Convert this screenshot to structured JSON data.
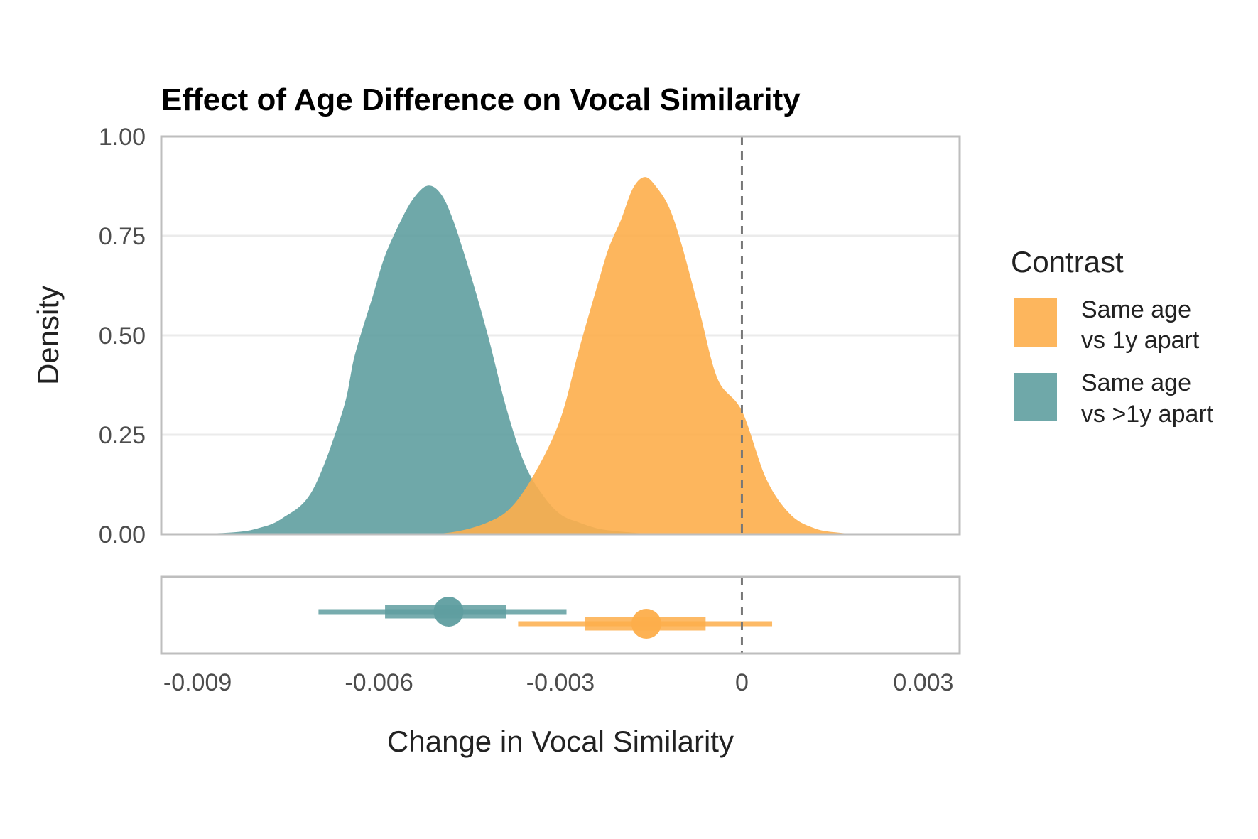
{
  "chart_data": {
    "type": "area",
    "title": "Effect of Age Difference on Vocal Similarity",
    "xlabel": "Change in Vocal Similarity",
    "ylabel": "Density",
    "xlim": [
      -0.0096,
      0.0036
    ],
    "ylim": [
      0,
      1.0
    ],
    "x_ticks": [
      "-0.009",
      "-0.006",
      "-0.003",
      "0",
      "0.003"
    ],
    "x_tick_values": [
      -0.009,
      -0.006,
      -0.003,
      0,
      0.003
    ],
    "y_ticks": [
      "0.00",
      "0.25",
      "0.50",
      "0.75",
      "1.00"
    ],
    "y_tick_values": [
      0,
      0.25,
      0.5,
      0.75,
      1.0
    ],
    "reference_line_x": 0,
    "grid": true,
    "legend": {
      "title": "Contrast",
      "position": "right",
      "entries": [
        {
          "line1": "Same age",
          "line2": "vs 1y apart",
          "color": "#fdae4b"
        },
        {
          "line1": "Same age",
          "line2": "vs >1y apart",
          "color": "#5f9ea0"
        }
      ]
    },
    "series": [
      {
        "name": "Same age vs >1y apart",
        "color": "#5f9ea0",
        "x": [
          -0.0092,
          -0.0084,
          -0.008,
          -0.0076,
          -0.0071,
          -0.0066,
          -0.0064,
          -0.0061,
          -0.0059,
          -0.0056,
          -0.0054,
          -0.0052,
          -0.005,
          -0.0048,
          -0.0045,
          -0.0042,
          -0.0039,
          -0.0036,
          -0.0033,
          -0.003,
          -0.0027,
          -0.0024,
          -0.0021,
          -0.0018,
          -0.0015
        ],
        "y": [
          0.0,
          0.005,
          0.015,
          0.04,
          0.11,
          0.31,
          0.45,
          0.6,
          0.7,
          0.8,
          0.85,
          0.876,
          0.86,
          0.8,
          0.66,
          0.5,
          0.32,
          0.18,
          0.1,
          0.05,
          0.03,
          0.015,
          0.008,
          0.004,
          0.0
        ]
      },
      {
        "name": "Same age vs 1y apart",
        "color": "#fdae4b",
        "x": [
          -0.0055,
          -0.0048,
          -0.0042,
          -0.0038,
          -0.0034,
          -0.003,
          -0.0027,
          -0.0024,
          -0.0022,
          -0.002,
          -0.0018,
          -0.0016,
          -0.0014,
          -0.0012,
          -0.001,
          -0.0007,
          -0.0004,
          0.0,
          0.0004,
          0.0008,
          0.0012,
          0.0016,
          0.0021
        ],
        "y": [
          0.0,
          0.005,
          0.03,
          0.07,
          0.16,
          0.29,
          0.46,
          0.62,
          0.72,
          0.79,
          0.87,
          0.898,
          0.87,
          0.82,
          0.73,
          0.56,
          0.39,
          0.31,
          0.14,
          0.05,
          0.015,
          0.004,
          0.0
        ]
      }
    ],
    "intervals": [
      {
        "name": "Same age vs >1y apart",
        "color": "#5f9ea0",
        "point": -0.00485,
        "inner": [
          -0.0059,
          -0.0039
        ],
        "outer": [
          -0.007,
          -0.0029
        ]
      },
      {
        "name": "Same age vs 1y apart",
        "color": "#fdae4b",
        "point": -0.00158,
        "inner": [
          -0.0026,
          -0.0006
        ],
        "outer": [
          -0.0037,
          0.0005
        ]
      }
    ]
  }
}
